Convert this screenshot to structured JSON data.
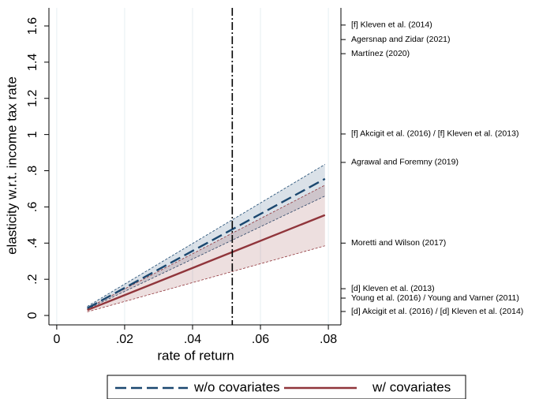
{
  "chart_data": {
    "type": "line",
    "x_label": "rate of return",
    "y_label": "elasticity w.r.t. income tax rate",
    "x": [
      0.009,
      0.079
    ],
    "series": [
      {
        "name": "w/o covariates",
        "color": "#1a476f",
        "dash": "long",
        "values": [
          0.04,
          0.755
        ],
        "lower": [
          0.035,
          0.66
        ],
        "upper": [
          0.05,
          0.835
        ]
      },
      {
        "name": "w/ covariates",
        "color": "#90353b",
        "dash": "solid",
        "values": [
          0.03,
          0.555
        ],
        "lower": [
          0.02,
          0.385
        ],
        "upper": [
          0.04,
          0.72
        ]
      }
    ],
    "vline": 0.0517,
    "xlim": [
      -0.0023,
      0.0837
    ],
    "ylim": [
      -0.052,
      1.7
    ],
    "xticks": [
      0,
      {
        "value": 0.02,
        "label": ".02"
      },
      {
        "value": 0.04,
        "label": ".04"
      },
      {
        "value": 0.06,
        "label": ".06"
      },
      {
        "value": 0.08,
        "label": ".08"
      }
    ],
    "yticks": [
      0,
      {
        "value": 0.2,
        "label": ".2"
      },
      {
        "value": 0.4,
        "label": ".4"
      },
      {
        "value": 0.6,
        "label": ".6"
      },
      {
        "value": 0.8,
        "label": ".8"
      },
      1,
      {
        "value": 1.2,
        "label": "1.2"
      },
      {
        "value": 1.4,
        "label": "1.4"
      },
      {
        "value": 1.6,
        "label": "1.6"
      }
    ],
    "right_labels": [
      {
        "value": 1.605,
        "label": "[f] Kleven et al. (2014)"
      },
      {
        "value": 1.525,
        "label": "Agersnap and Zidar (2021)"
      },
      {
        "value": 1.447,
        "label": "Martínez (2020)"
      },
      {
        "value": 1.003,
        "label": "[f] Akcigit et al. (2016) /  [f] Kleven et al. (2013)"
      },
      {
        "value": 0.846,
        "label": "Agrawal and Foremny (2019)"
      },
      {
        "value": 0.4,
        "label": "Moretti and Wilson (2017)"
      },
      {
        "value": 0.148,
        "label": "[d] Kleven et al. (2013)"
      },
      {
        "value": 0.096,
        "label": "Young et al. (2016) / Young and Varner (2011)"
      },
      {
        "value": 0.022,
        "label": "[d] Akcigit et al. (2016) / [d] Kleven et al. (2014)"
      }
    ],
    "grid": true,
    "legend": "bottom"
  }
}
